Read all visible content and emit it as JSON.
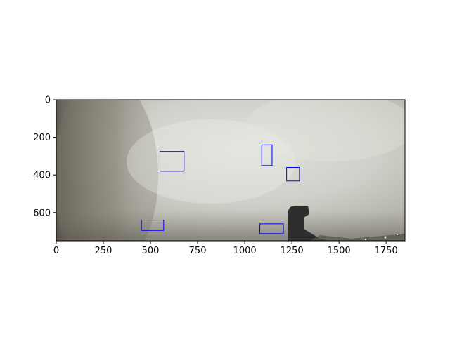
{
  "chart_data": {
    "type": "image_with_bounding_boxes",
    "title": "",
    "xlabel": "",
    "ylabel": "",
    "xlim": [
      0,
      1850
    ],
    "ylim": [
      750,
      0
    ],
    "x_ticks": [
      0,
      250,
      500,
      750,
      1000,
      1250,
      1500,
      1750
    ],
    "x_tick_labels": [
      "0",
      "250",
      "500",
      "750",
      "1000",
      "1250",
      "1500",
      "1750"
    ],
    "y_ticks": [
      0,
      200,
      400,
      600
    ],
    "y_tick_labels": [
      "0",
      "200",
      "400",
      "600"
    ],
    "grid": false,
    "box_color": "#0000ff",
    "boxes": [
      {
        "x0": 550,
        "y0": 275,
        "x1": 678,
        "y1": 380
      },
      {
        "x0": 1090,
        "y0": 240,
        "x1": 1145,
        "y1": 350
      },
      {
        "x0": 1222,
        "y0": 360,
        "x1": 1290,
        "y1": 432
      },
      {
        "x0": 452,
        "y0": 640,
        "x1": 570,
        "y1": 695
      },
      {
        "x0": 1080,
        "y0": 660,
        "x1": 1205,
        "y1": 712
      }
    ],
    "image_description_colors": {
      "smoke_light": "#dcdcd4",
      "smoke_mid": "#b9b9b0",
      "dark_left": "#6f6a60",
      "ground_dark": "#3e3e3e"
    }
  }
}
